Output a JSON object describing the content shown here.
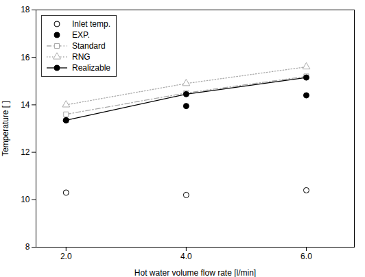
{
  "chart_data": {
    "type": "line",
    "x": [
      2,
      4,
      6
    ],
    "series": [
      {
        "name": "Inlet temp.",
        "type": "scatter",
        "color": "#000000",
        "marker": "open circle",
        "values": [
          10.3,
          10.2,
          10.4
        ]
      },
      {
        "name": "EXP.",
        "type": "scatter",
        "color": "#000000",
        "marker": "circle",
        "values": [
          13.35,
          13.95,
          14.4
        ]
      },
      {
        "name": "Standard",
        "type": "line",
        "color": "#aaaaaa",
        "marker": "open square",
        "line_style": "dashdot",
        "values": [
          13.6,
          14.5,
          15.2
        ]
      },
      {
        "name": "RNG",
        "type": "line",
        "color": "#aaaaaa",
        "marker": "open triangle",
        "line_style": "dotted",
        "values": [
          14.0,
          14.9,
          15.6
        ]
      },
      {
        "name": "Realizable",
        "type": "line",
        "color": "#000000",
        "marker": "circle",
        "line_style": "solid",
        "values": [
          13.35,
          14.45,
          15.15
        ]
      }
    ],
    "xlabel": "Hot water volume flow rate [l/min]",
    "ylabel": "Temperature [ ]",
    "xlim": [
      1.5,
      6.8
    ],
    "xticks": [
      2,
      4,
      6
    ],
    "ylim": [
      8,
      18
    ],
    "yticks": [
      8,
      10,
      12,
      14,
      16,
      18
    ],
    "grid": false,
    "legend": "upper left"
  }
}
